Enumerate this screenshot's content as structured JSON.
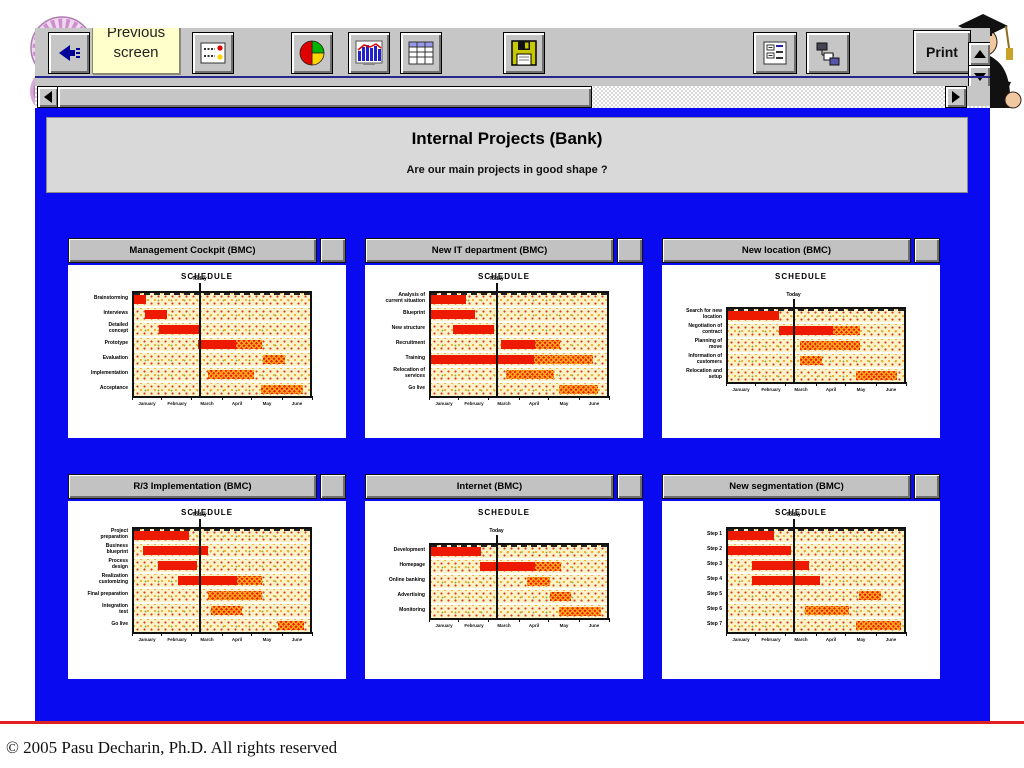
{
  "toolbar": {
    "tooltip_line1": "Previous",
    "tooltip_line2": "screen",
    "print_label": "Print",
    "icon_names": [
      "back-icon",
      "options-list-icon",
      "pie-chart-icon",
      "bar-chart-icon",
      "table-icon",
      "save-icon",
      "form-icon",
      "hierarchy-icon",
      "scroll-up-icon",
      "scroll-down-icon",
      "scroll-left-icon",
      "scroll-right-icon"
    ]
  },
  "header": {
    "title": "Internal Projects (Bank)",
    "subtitle": "Are our main projects in good shape ?"
  },
  "footer": {
    "copyright": "© 2005 Pasu Decharin, Ph.D. All rights reserved"
  },
  "colors": {
    "background_blue": "#0A0AF0",
    "bar_red": "#EE1A00",
    "hatch_orange": "#FFA51E",
    "plot_background": "#FBF2C8",
    "footer_line_red": "#E02020"
  },
  "chart_common": {
    "title": "SCHEDULE",
    "today_label": "Today",
    "today_position": 0.375,
    "months": [
      "January",
      "February",
      "March",
      "April",
      "May",
      "June"
    ]
  },
  "chart_data": {
    "type": "table",
    "note": "Six Gantt mini-charts; bar start/end as fraction of Jan-Jun axis; style solid=completed, hatch=planned"
  },
  "panels": [
    {
      "title": "Management Cockpit (BMC)",
      "rows": [
        {
          "label": [
            "Brainstorming"
          ],
          "bars": [
            {
              "start": 0,
              "end": 0.07,
              "style": "solid"
            }
          ]
        },
        {
          "label": [
            "Interviews"
          ],
          "bars": [
            {
              "start": 0.06,
              "end": 0.19,
              "style": "solid"
            }
          ]
        },
        {
          "label": [
            "Detailed",
            "concept"
          ],
          "bars": [
            {
              "start": 0.14,
              "end": 0.37,
              "style": "solid"
            }
          ]
        },
        {
          "label": [
            "Prototype"
          ],
          "bars": [
            {
              "start": 0.365,
              "end": 0.58,
              "style": "solid"
            },
            {
              "start": 0.58,
              "end": 0.73,
              "style": "hatch"
            }
          ]
        },
        {
          "label": [
            "Evaluation"
          ],
          "bars": [
            {
              "start": 0.735,
              "end": 0.86,
              "style": "hatch"
            }
          ]
        },
        {
          "label": [
            "Implementation"
          ],
          "bars": [
            {
              "start": 0.42,
              "end": 0.68,
              "style": "hatch"
            }
          ]
        },
        {
          "label": [
            "Acceptance"
          ],
          "bars": [
            {
              "start": 0.72,
              "end": 0.96,
              "style": "hatch"
            }
          ]
        }
      ]
    },
    {
      "title": "New IT department (BMC)",
      "rows": [
        {
          "label": [
            "Analysis of",
            "current situation"
          ],
          "bars": [
            {
              "start": 0,
              "end": 0.2,
              "style": "solid"
            }
          ]
        },
        {
          "label": [
            "Blueprint"
          ],
          "bars": [
            {
              "start": 0,
              "end": 0.25,
              "style": "solid"
            }
          ]
        },
        {
          "label": [
            "New structure"
          ],
          "bars": [
            {
              "start": 0.126,
              "end": 0.358,
              "style": "solid"
            }
          ]
        },
        {
          "label": [
            "Recruitment"
          ],
          "bars": [
            {
              "start": 0.4,
              "end": 0.59,
              "style": "solid"
            },
            {
              "start": 0.59,
              "end": 0.735,
              "style": "hatch"
            }
          ]
        },
        {
          "label": [
            "Training"
          ],
          "bars": [
            {
              "start": 0,
              "end": 0.585,
              "style": "solid"
            },
            {
              "start": 0.585,
              "end": 0.92,
              "style": "hatch"
            }
          ]
        },
        {
          "label": [
            "Relocation of",
            "services"
          ],
          "bars": [
            {
              "start": 0.424,
              "end": 0.698,
              "style": "hatch"
            }
          ]
        },
        {
          "label": [
            "Go live"
          ],
          "bars": [
            {
              "start": 0.73,
              "end": 0.95,
              "style": "hatch"
            }
          ]
        }
      ]
    },
    {
      "title": "New location (BMC)",
      "rows": [
        {
          "label": [
            "Search for new",
            "location"
          ],
          "bars": [
            {
              "start": 0,
              "end": 0.29,
              "style": "solid"
            }
          ]
        },
        {
          "label": [
            "Negotiation of",
            "contract"
          ],
          "bars": [
            {
              "start": 0.29,
              "end": 0.595,
              "style": "solid"
            },
            {
              "start": 0.595,
              "end": 0.75,
              "style": "hatch"
            }
          ]
        },
        {
          "label": [
            "Planning of",
            "move"
          ],
          "bars": [
            {
              "start": 0.41,
              "end": 0.75,
              "style": "hatch"
            }
          ]
        },
        {
          "label": [
            "Information of",
            "customers"
          ],
          "bars": [
            {
              "start": 0.41,
              "end": 0.535,
              "style": "hatch"
            }
          ]
        },
        {
          "label": [
            "Relocation and",
            "setup"
          ],
          "bars": [
            {
              "start": 0.73,
              "end": 0.96,
              "style": "hatch"
            }
          ]
        }
      ]
    },
    {
      "title": "R/3 Implementation (BMC)",
      "rows": [
        {
          "label": [
            "Project",
            "preparation"
          ],
          "bars": [
            {
              "start": 0,
              "end": 0.315,
              "style": "solid"
            }
          ]
        },
        {
          "label": [
            "Business",
            "blueprint"
          ],
          "bars": [
            {
              "start": 0.05,
              "end": 0.42,
              "style": "solid"
            }
          ]
        },
        {
          "label": [
            "Process",
            "design"
          ],
          "bars": [
            {
              "start": 0.135,
              "end": 0.36,
              "style": "solid"
            }
          ]
        },
        {
          "label": [
            "Realization",
            "customizing"
          ],
          "bars": [
            {
              "start": 0.25,
              "end": 0.585,
              "style": "solid"
            },
            {
              "start": 0.585,
              "end": 0.73,
              "style": "hatch"
            }
          ]
        },
        {
          "label": [
            "Final preparation"
          ],
          "bars": [
            {
              "start": 0.42,
              "end": 0.73,
              "style": "hatch"
            }
          ]
        },
        {
          "label": [
            "Integration",
            "test"
          ],
          "bars": [
            {
              "start": 0.44,
              "end": 0.615,
              "style": "hatch"
            }
          ]
        },
        {
          "label": [
            "Go live"
          ],
          "bars": [
            {
              "start": 0.82,
              "end": 0.965,
              "style": "hatch"
            }
          ]
        }
      ]
    },
    {
      "title": "Internet (BMC)",
      "rows": [
        {
          "label": [
            "Development"
          ],
          "bars": [
            {
              "start": 0,
              "end": 0.285,
              "style": "solid"
            }
          ]
        },
        {
          "label": [
            "Homepage"
          ],
          "bars": [
            {
              "start": 0.28,
              "end": 0.59,
              "style": "solid"
            },
            {
              "start": 0.59,
              "end": 0.74,
              "style": "hatch"
            }
          ]
        },
        {
          "label": [
            "Online banking"
          ],
          "bars": [
            {
              "start": 0.545,
              "end": 0.675,
              "style": "hatch"
            }
          ]
        },
        {
          "label": [
            "Advertising"
          ],
          "bars": [
            {
              "start": 0.675,
              "end": 0.795,
              "style": "hatch"
            }
          ]
        },
        {
          "label": [
            "Monitoring"
          ],
          "bars": [
            {
              "start": 0.73,
              "end": 0.965,
              "style": "hatch"
            }
          ]
        }
      ]
    },
    {
      "title": "New segmentation (BMC)",
      "rows": [
        {
          "label": [
            "Step 1"
          ],
          "bars": [
            {
              "start": 0,
              "end": 0.26,
              "style": "solid"
            }
          ]
        },
        {
          "label": [
            "Step 2"
          ],
          "bars": [
            {
              "start": 0,
              "end": 0.36,
              "style": "solid"
            }
          ]
        },
        {
          "label": [
            "Step 3"
          ],
          "bars": [
            {
              "start": 0.135,
              "end": 0.46,
              "style": "solid"
            }
          ]
        },
        {
          "label": [
            "Step 4"
          ],
          "bars": [
            {
              "start": 0.135,
              "end": 0.52,
              "style": "solid"
            }
          ]
        },
        {
          "label": [
            "Step 5"
          ],
          "bars": [
            {
              "start": 0.745,
              "end": 0.87,
              "style": "hatch"
            }
          ]
        },
        {
          "label": [
            "Step 6"
          ],
          "bars": [
            {
              "start": 0.435,
              "end": 0.685,
              "style": "hatch"
            }
          ]
        },
        {
          "label": [
            "Step 7"
          ],
          "bars": [
            {
              "start": 0.725,
              "end": 0.985,
              "style": "hatch"
            }
          ]
        }
      ]
    }
  ]
}
